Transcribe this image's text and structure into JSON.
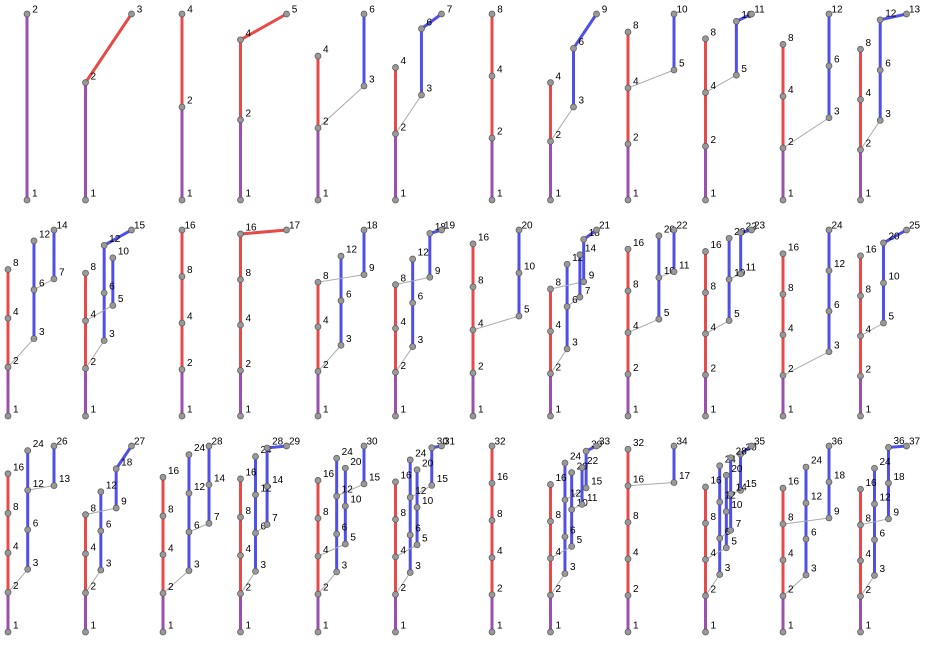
{
  "panels": [
    {
      "title": "2",
      "labels": [
        "1"
      ]
    },
    {
      "title": "3",
      "labels": [
        "1",
        "2"
      ]
    },
    {
      "title": "4",
      "labels": [
        "1",
        "2"
      ]
    },
    {
      "title": "5",
      "labels": [
        "1",
        "2",
        "4"
      ]
    },
    {
      "title": "6",
      "labels": [
        "1",
        "2",
        "4",
        "3"
      ]
    },
    {
      "title": "7",
      "labels": [
        "1",
        "2",
        "4",
        "3",
        "6"
      ]
    },
    {
      "title": "8",
      "labels": [
        "1",
        "2",
        "4"
      ]
    },
    {
      "title": "9",
      "labels": [
        "1",
        "2",
        "4",
        "3",
        "6"
      ]
    },
    {
      "title": "10",
      "labels": [
        "1",
        "2",
        "4",
        "8",
        "5"
      ]
    },
    {
      "title": "11",
      "labels": [
        "1",
        "2",
        "4",
        "8",
        "5",
        "10"
      ]
    },
    {
      "title": "12",
      "labels": [
        "1",
        "2",
        "4",
        "8",
        "3",
        "6"
      ]
    },
    {
      "title": "13",
      "labels": [
        "1",
        "2",
        "4",
        "8",
        "3",
        "6",
        "12"
      ]
    },
    {
      "title": "14",
      "labels": [
        "1",
        "2",
        "4",
        "8",
        "12",
        "3",
        "6",
        "7"
      ]
    },
    {
      "title": "15",
      "labels": [
        "1",
        "2",
        "4",
        "8",
        "12",
        "3",
        "6",
        "10",
        "5"
      ]
    },
    {
      "title": "16",
      "labels": [
        "1",
        "2",
        "4",
        "8"
      ]
    },
    {
      "title": "17",
      "labels": [
        "1",
        "2",
        "4",
        "8",
        "16"
      ]
    },
    {
      "title": "18",
      "labels": [
        "1",
        "2",
        "4",
        "8",
        "12",
        "3",
        "6",
        "9"
      ]
    },
    {
      "title": "19",
      "labels": [
        "1",
        "2",
        "4",
        "8",
        "12",
        "3",
        "6",
        "9",
        "18"
      ]
    },
    {
      "title": "20",
      "labels": [
        "1",
        "2",
        "4",
        "8",
        "16",
        "5",
        "10"
      ]
    },
    {
      "title": "21",
      "labels": [
        "1",
        "2",
        "4",
        "8",
        "12",
        "18",
        "3",
        "6",
        "9",
        "7",
        "14"
      ]
    },
    {
      "title": "22",
      "labels": [
        "1",
        "2",
        "4",
        "8",
        "16",
        "20",
        "5",
        "10",
        "11"
      ]
    },
    {
      "title": "23",
      "labels": [
        "1",
        "2",
        "4",
        "8",
        "16",
        "20",
        "5",
        "10",
        "11",
        "22"
      ]
    },
    {
      "title": "24",
      "labels": [
        "1",
        "2",
        "4",
        "8",
        "16",
        "3",
        "6",
        "12"
      ]
    },
    {
      "title": "25",
      "labels": [
        "1",
        "2",
        "4",
        "8",
        "16",
        "5",
        "10",
        "20"
      ]
    },
    {
      "title": "26",
      "labels": [
        "1",
        "2",
        "4",
        "8",
        "16",
        "24",
        "3",
        "6",
        "12",
        "13"
      ]
    },
    {
      "title": "27",
      "labels": [
        "1",
        "2",
        "4",
        "8",
        "12",
        "18",
        "3",
        "6",
        "9"
      ]
    },
    {
      "title": "28",
      "labels": [
        "1",
        "2",
        "4",
        "8",
        "12",
        "16",
        "24",
        "3",
        "6",
        "7",
        "14"
      ]
    },
    {
      "title": "29",
      "labels": [
        "1",
        "2",
        "4",
        "8",
        "12",
        "16",
        "24",
        "3",
        "6",
        "7",
        "14",
        "28"
      ]
    },
    {
      "title": "30",
      "labels": [
        "1",
        "2",
        "4",
        "8",
        "12",
        "16",
        "24",
        "3",
        "6",
        "10",
        "20",
        "5",
        "15"
      ]
    },
    {
      "title": "31",
      "labels": [
        "1",
        "2",
        "3",
        "4",
        "6",
        "8",
        "12",
        "16",
        "24",
        "5",
        "10",
        "20",
        "15",
        "30"
      ]
    },
    {
      "title": "32",
      "labels": [
        "1",
        "2",
        "4",
        "8",
        "16"
      ]
    },
    {
      "title": "33",
      "labels": [
        "1",
        "2",
        "3",
        "4",
        "6",
        "8",
        "12",
        "16",
        "24",
        "5",
        "10",
        "20",
        "15",
        "30",
        "11",
        "22"
      ]
    },
    {
      "title": "34",
      "labels": [
        "1",
        "2",
        "4",
        "8",
        "16",
        "32",
        "17"
      ]
    },
    {
      "title": "35",
      "labels": [
        "1",
        "2",
        "3",
        "4",
        "6",
        "8",
        "12",
        "16",
        "24",
        "5",
        "10",
        "20",
        "15",
        "30",
        "7",
        "14",
        "28"
      ]
    },
    {
      "title": "36",
      "labels": [
        "1",
        "2",
        "4",
        "8",
        "16",
        "24",
        "3",
        "6",
        "12",
        "18",
        "9"
      ]
    },
    {
      "title": "37",
      "labels": [
        "1",
        "2",
        "4",
        "8",
        "16",
        "24",
        "3",
        "6",
        "12",
        "18",
        "9",
        "36"
      ]
    }
  ]
}
